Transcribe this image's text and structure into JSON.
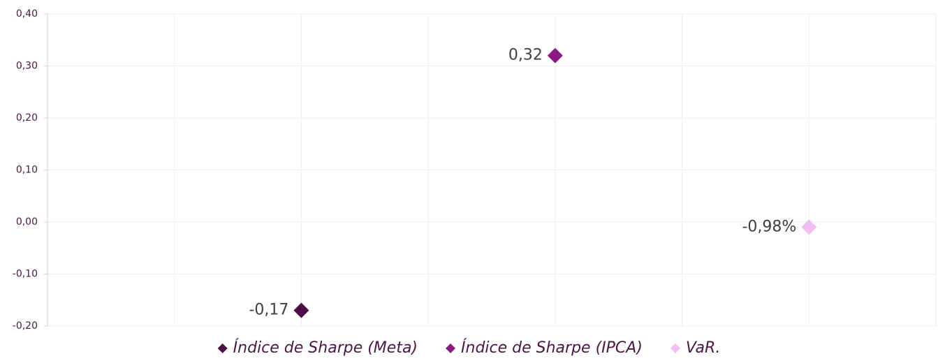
{
  "chart_data": {
    "type": "scatter",
    "series": [
      {
        "name": "Índice de Sharpe (Meta)",
        "color": "#4b0f47",
        "x": [
          2
        ],
        "values": [
          -0.17
        ],
        "value_labels": [
          "-0,17"
        ]
      },
      {
        "name": "Índice de Sharpe (IPCA)",
        "color": "#8c1a80",
        "x": [
          4
        ],
        "values": [
          0.32
        ],
        "value_labels": [
          "0,32"
        ]
      },
      {
        "name": "VaR.",
        "color": "#f2bdf0",
        "x": [
          6
        ],
        "values": [
          -0.0098
        ],
        "value_labels": [
          "-0,98%"
        ]
      }
    ],
    "xlim": [
      0,
      7
    ],
    "xticks": [
      0,
      1,
      2,
      3,
      4,
      5,
      6,
      7
    ],
    "ylim": [
      -0.2,
      0.4
    ],
    "yticks": [
      {
        "value": -0.2,
        "label": "-0,20"
      },
      {
        "value": -0.1,
        "label": "-0,10"
      },
      {
        "value": 0,
        "label": "0,00"
      },
      {
        "value": 0.1,
        "label": "0,10"
      },
      {
        "value": 0.2,
        "label": "0,20"
      },
      {
        "value": 0.3,
        "label": "0,30"
      },
      {
        "value": 0.4,
        "label": "0,40"
      }
    ],
    "grid": true,
    "legend": "bottom"
  }
}
